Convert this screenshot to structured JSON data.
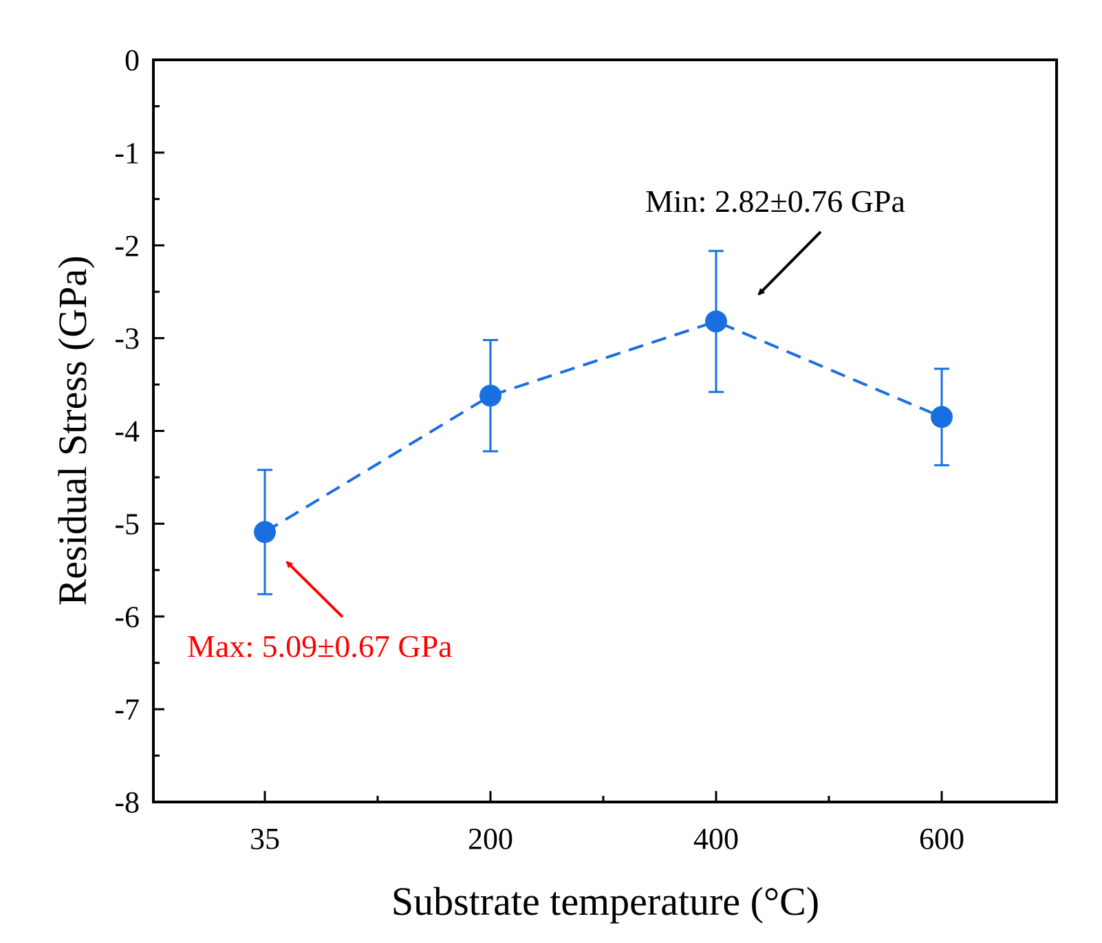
{
  "chart_data": {
    "type": "line",
    "title": "",
    "xlabel": "Substrate temperature (°C)",
    "ylabel": "Residual Stress (GPa)",
    "categories": [
      "35",
      "200",
      "400",
      "600"
    ],
    "ylim": [
      -8,
      0
    ],
    "yticks": [
      "0",
      "-1",
      "-2",
      "-3",
      "-4",
      "-5",
      "-6",
      "-7",
      "-8"
    ],
    "grid": false,
    "series": [
      {
        "name": "Residual Stress",
        "color": "#1a6fe0",
        "line_style": "dashed",
        "marker": "circle",
        "values": [
          -5.09,
          -3.62,
          -2.82,
          -3.85
        ],
        "error_upper": [
          0.67,
          0.6,
          0.76,
          0.52
        ],
        "error_lower": [
          0.67,
          0.6,
          0.76,
          0.52
        ]
      }
    ],
    "annotations": [
      {
        "text": "Min: 2.82±0.76 GPa",
        "color": "#000000",
        "target_index": 2
      },
      {
        "text": "Max: 5.09±0.67 GPa",
        "color": "#ff0000",
        "target_index": 0
      }
    ]
  }
}
